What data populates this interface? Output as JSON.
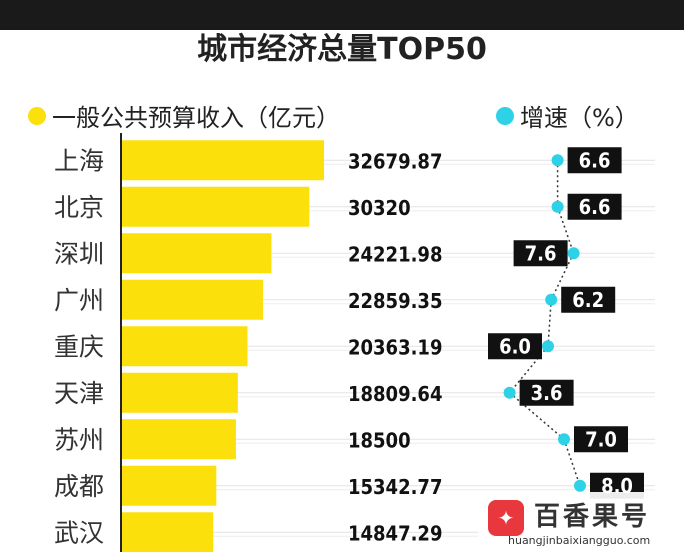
{
  "title": "城市经济总量TOP50",
  "legend": {
    "revenue_label": "一般公共预算收入（亿元）",
    "growth_label": "增速（%）"
  },
  "colors": {
    "bar": "#fce00b",
    "growth_dot": "#2dd2e6",
    "growth_box": "#111111",
    "growth_text": "#ffffff"
  },
  "chart_data": {
    "type": "bar",
    "categories": [
      "上海",
      "北京",
      "深圳",
      "广州",
      "重庆",
      "天津",
      "苏州",
      "成都",
      "武汉"
    ],
    "series": [
      {
        "name": "一般公共预算收入（亿元）",
        "values": [
          32679.87,
          30320,
          24221.98,
          22859.35,
          20363.19,
          18809.64,
          18500,
          15342.77,
          14847.29
        ],
        "labels": [
          "32679.87",
          "30320",
          "24221.98",
          "22859.35",
          "20363.19",
          "18809.64",
          "18500",
          "15342.77",
          "14847.29"
        ]
      },
      {
        "name": "增速（%）",
        "type": "line",
        "values": [
          6.6,
          6.6,
          7.6,
          6.2,
          6.0,
          3.6,
          7.0,
          8.0,
          null
        ],
        "labels": [
          "6.6",
          "6.6",
          "7.6",
          "6.2",
          "6.0",
          "3.6",
          "7.0",
          "8.0",
          ""
        ]
      }
    ]
  },
  "watermark": {
    "logo_glyph": "✦",
    "name": "百香果号",
    "url": "huangjinbaixiangguo.com"
  }
}
